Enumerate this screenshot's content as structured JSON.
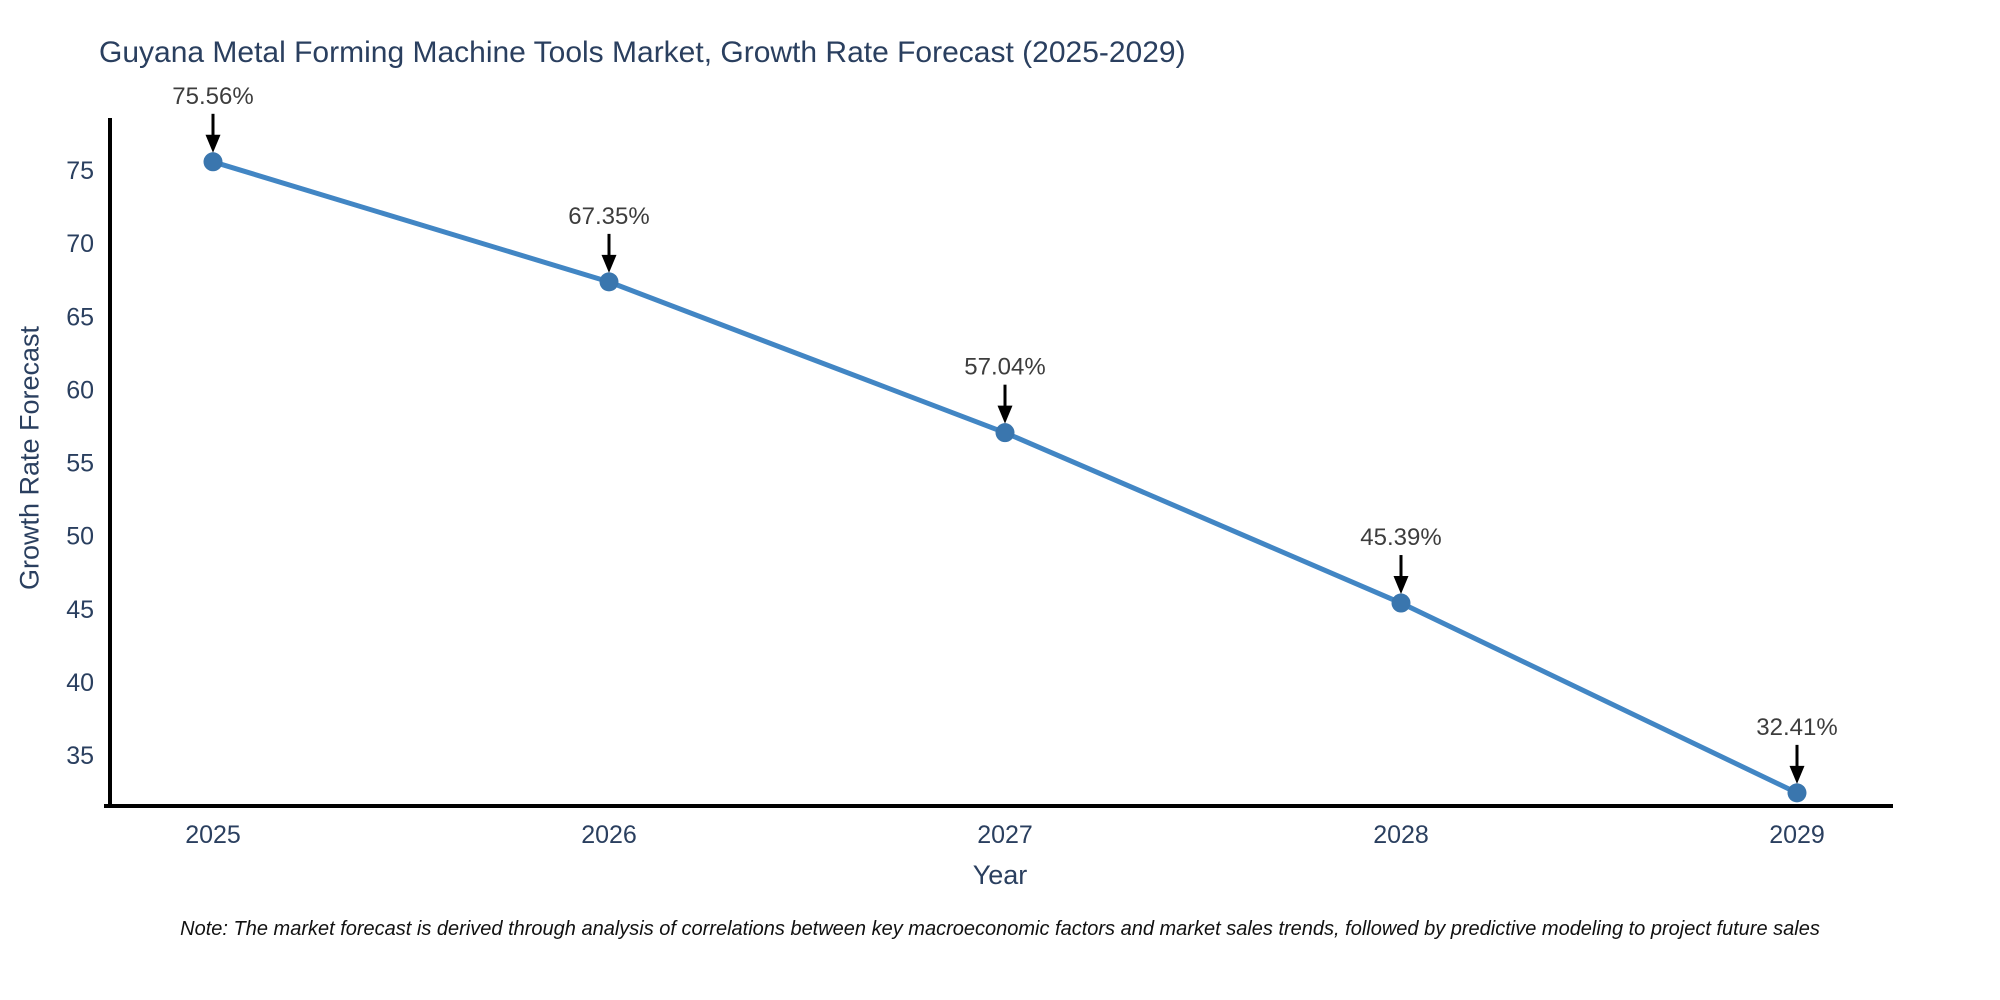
{
  "page": {
    "note": "Note: The market forecast is derived through analysis of correlations between key macroeconomic factors and market sales trends, followed by predictive modeling to project future sales"
  },
  "chart_data": {
    "type": "line",
    "title": "Guyana Metal Forming Machine Tools Market, Growth Rate Forecast (2025-2029)",
    "xlabel": "Year",
    "ylabel": "Growth Rate Forecast",
    "categories": [
      "2025",
      "2026",
      "2027",
      "2028",
      "2029"
    ],
    "series": [
      {
        "name": "Growth Rate Forecast",
        "values": [
          75.56,
          67.35,
          57.04,
          45.39,
          32.41
        ]
      }
    ],
    "point_labels": [
      "75.56%",
      "67.35%",
      "57.04%",
      "45.39%",
      "32.41%"
    ],
    "yticks": [
      35,
      40,
      45,
      50,
      55,
      60,
      65,
      70,
      75
    ],
    "ylim": [
      31.5,
      78.5
    ],
    "grid": false,
    "legend": "none",
    "annotation_style": "black-arrow-pointing-down-to-marker",
    "colors": {
      "line": "#4286c4",
      "marker": "#3a76ae",
      "axis": "#000000",
      "tick_label": "#2a3f5f",
      "title": "#2a3f5f",
      "annotation_text": "#3d3d3d",
      "annotation_arrow": "#000000"
    }
  }
}
